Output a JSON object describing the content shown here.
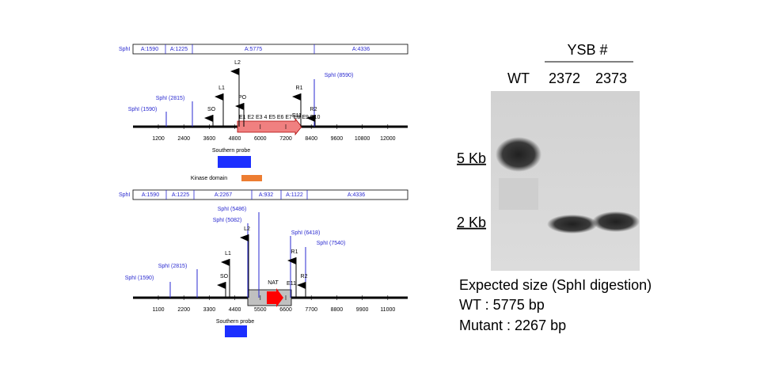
{
  "top_map": {
    "header": {
      "enzyme": "SphI",
      "segments": [
        "A:1590",
        "A:1225",
        "A:5775",
        "A:4336"
      ]
    },
    "sites": [
      "SphI (1590)",
      "SphI (2815)",
      "SphI (8590)"
    ],
    "primers": [
      "L2",
      "L1",
      "PO",
      "SO",
      "R1",
      "R2"
    ],
    "exons": "E1 E2 E3 4 E5 E6 E7 E8 E9 E10",
    "exon_end": "E11",
    "axis": [
      1200,
      2400,
      3600,
      4800,
      6000,
      7200,
      8400,
      9600,
      10800,
      12000
    ],
    "probe": "Southern probe",
    "kinase": "Kinase domain"
  },
  "bottom_map": {
    "header": {
      "enzyme": "SphI",
      "segments": [
        "A:1590",
        "A:1225",
        "A:2267",
        "A:932",
        "A:1122",
        "A:4336"
      ]
    },
    "sites": [
      "SphI (1590)",
      "SphI (2815)",
      "SphI (5082)",
      "SphI (5486)",
      "SphI (6418)",
      "SphI (7540)"
    ],
    "primers": [
      "L2",
      "L1",
      "SO",
      "R1",
      "R2"
    ],
    "marker": "NAT",
    "exon_end": "E11",
    "axis": [
      1100,
      2200,
      3300,
      4400,
      5500,
      6600,
      7700,
      8800,
      9900,
      11000
    ],
    "probe": "Southern probe"
  },
  "gel": {
    "group": "YSB #",
    "lanes": [
      "WT",
      "2372",
      "2373"
    ],
    "markers": [
      "5 Kb",
      "2 Kb"
    ]
  },
  "expected": {
    "title": "Expected size (SphI digestion)",
    "wt": "WT : 5775 bp",
    "mutant": "Mutant : 2267 bp"
  }
}
